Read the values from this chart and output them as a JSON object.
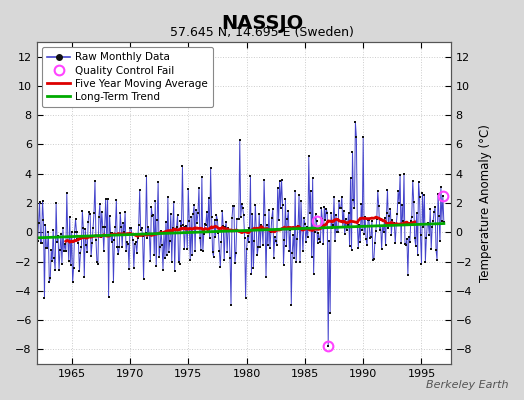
{
  "title": "NASSJO",
  "subtitle": "57.645 N, 14.695 E (Sweden)",
  "ylabel": "Temperature Anomaly (°C)",
  "watermark": "Berkeley Earth",
  "xlim": [
    1962.0,
    1997.5
  ],
  "ylim": [
    -9,
    13
  ],
  "yticks": [
    -8,
    -6,
    -4,
    -2,
    0,
    2,
    4,
    6,
    8,
    10,
    12
  ],
  "xticks": [
    1965,
    1970,
    1975,
    1980,
    1985,
    1990,
    1995
  ],
  "bg_color": "#d8d8d8",
  "plot_bg_color": "#ffffff",
  "grid_color": "#cccccc",
  "raw_line_color": "#4444cc",
  "raw_dot_color": "#111111",
  "moving_avg_color": "#dd0000",
  "trend_color": "#00aa00",
  "qc_fail_color": "#ff44ff",
  "seed": 42,
  "n_months": 420,
  "start_year": 1962,
  "end_year": 1997,
  "trend_slope": 0.028,
  "trend_intercept": -0.38,
  "moving_avg_window": 60,
  "qc_fail_indices": [
    288,
    300,
    418
  ],
  "qc_fail_values": [
    1.2,
    -2.8,
    0.1
  ],
  "spike_indices": [
    300,
    302,
    325,
    328,
    329,
    8,
    60,
    150,
    250,
    280,
    170,
    200,
    215,
    336
  ],
  "spike_values": [
    -7.8,
    -5.5,
    5.5,
    7.5,
    6.5,
    -4.5,
    3.5,
    4.5,
    3.5,
    5.2,
    3.8,
    -5.0,
    -4.5,
    6.5
  ]
}
